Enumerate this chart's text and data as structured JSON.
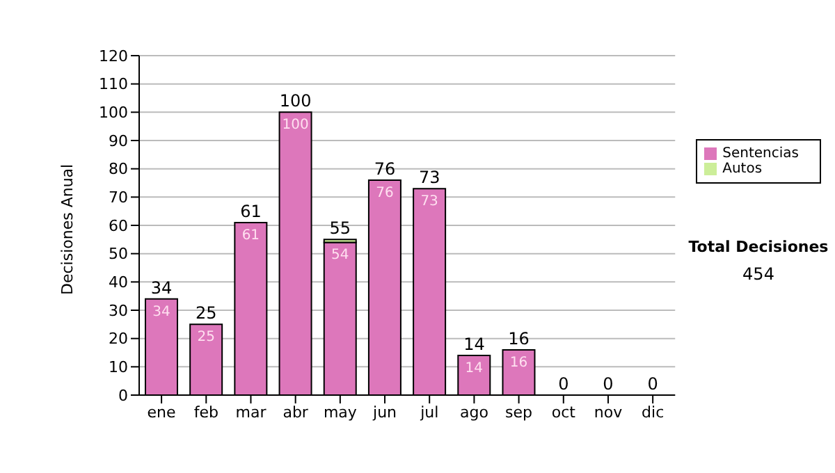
{
  "chart_data": {
    "type": "bar",
    "stacked": true,
    "ylabel": "Decisiones Anual",
    "categories": [
      "ene",
      "feb",
      "mar",
      "abr",
      "may",
      "jun",
      "jul",
      "ago",
      "sep",
      "oct",
      "nov",
      "dic"
    ],
    "series": [
      {
        "name": "Sentencias",
        "color": "#dd77bb",
        "values": [
          34,
          25,
          61,
          100,
          54,
          76,
          73,
          14,
          16,
          0,
          0,
          0
        ],
        "value_labels": [
          "34",
          "25",
          "61",
          "100",
          "54",
          "76",
          "73",
          "14",
          "16",
          null,
          null,
          null
        ]
      },
      {
        "name": "Autos",
        "color": "#ccee99",
        "values": [
          0,
          0,
          0,
          0,
          1,
          0,
          0,
          0,
          0,
          0,
          0,
          0
        ]
      }
    ],
    "totals": [
      "34",
      "25",
      "61",
      "100",
      "55",
      "76",
      "73",
      "14",
      "16",
      "0",
      "0",
      "0"
    ],
    "ylim": [
      0,
      120
    ],
    "yticks": [
      0,
      10,
      20,
      30,
      40,
      50,
      60,
      70,
      80,
      90,
      100,
      110,
      120
    ],
    "grid": "y",
    "legend": "right",
    "annotations": [
      "Total Decisiones",
      "454"
    ]
  }
}
